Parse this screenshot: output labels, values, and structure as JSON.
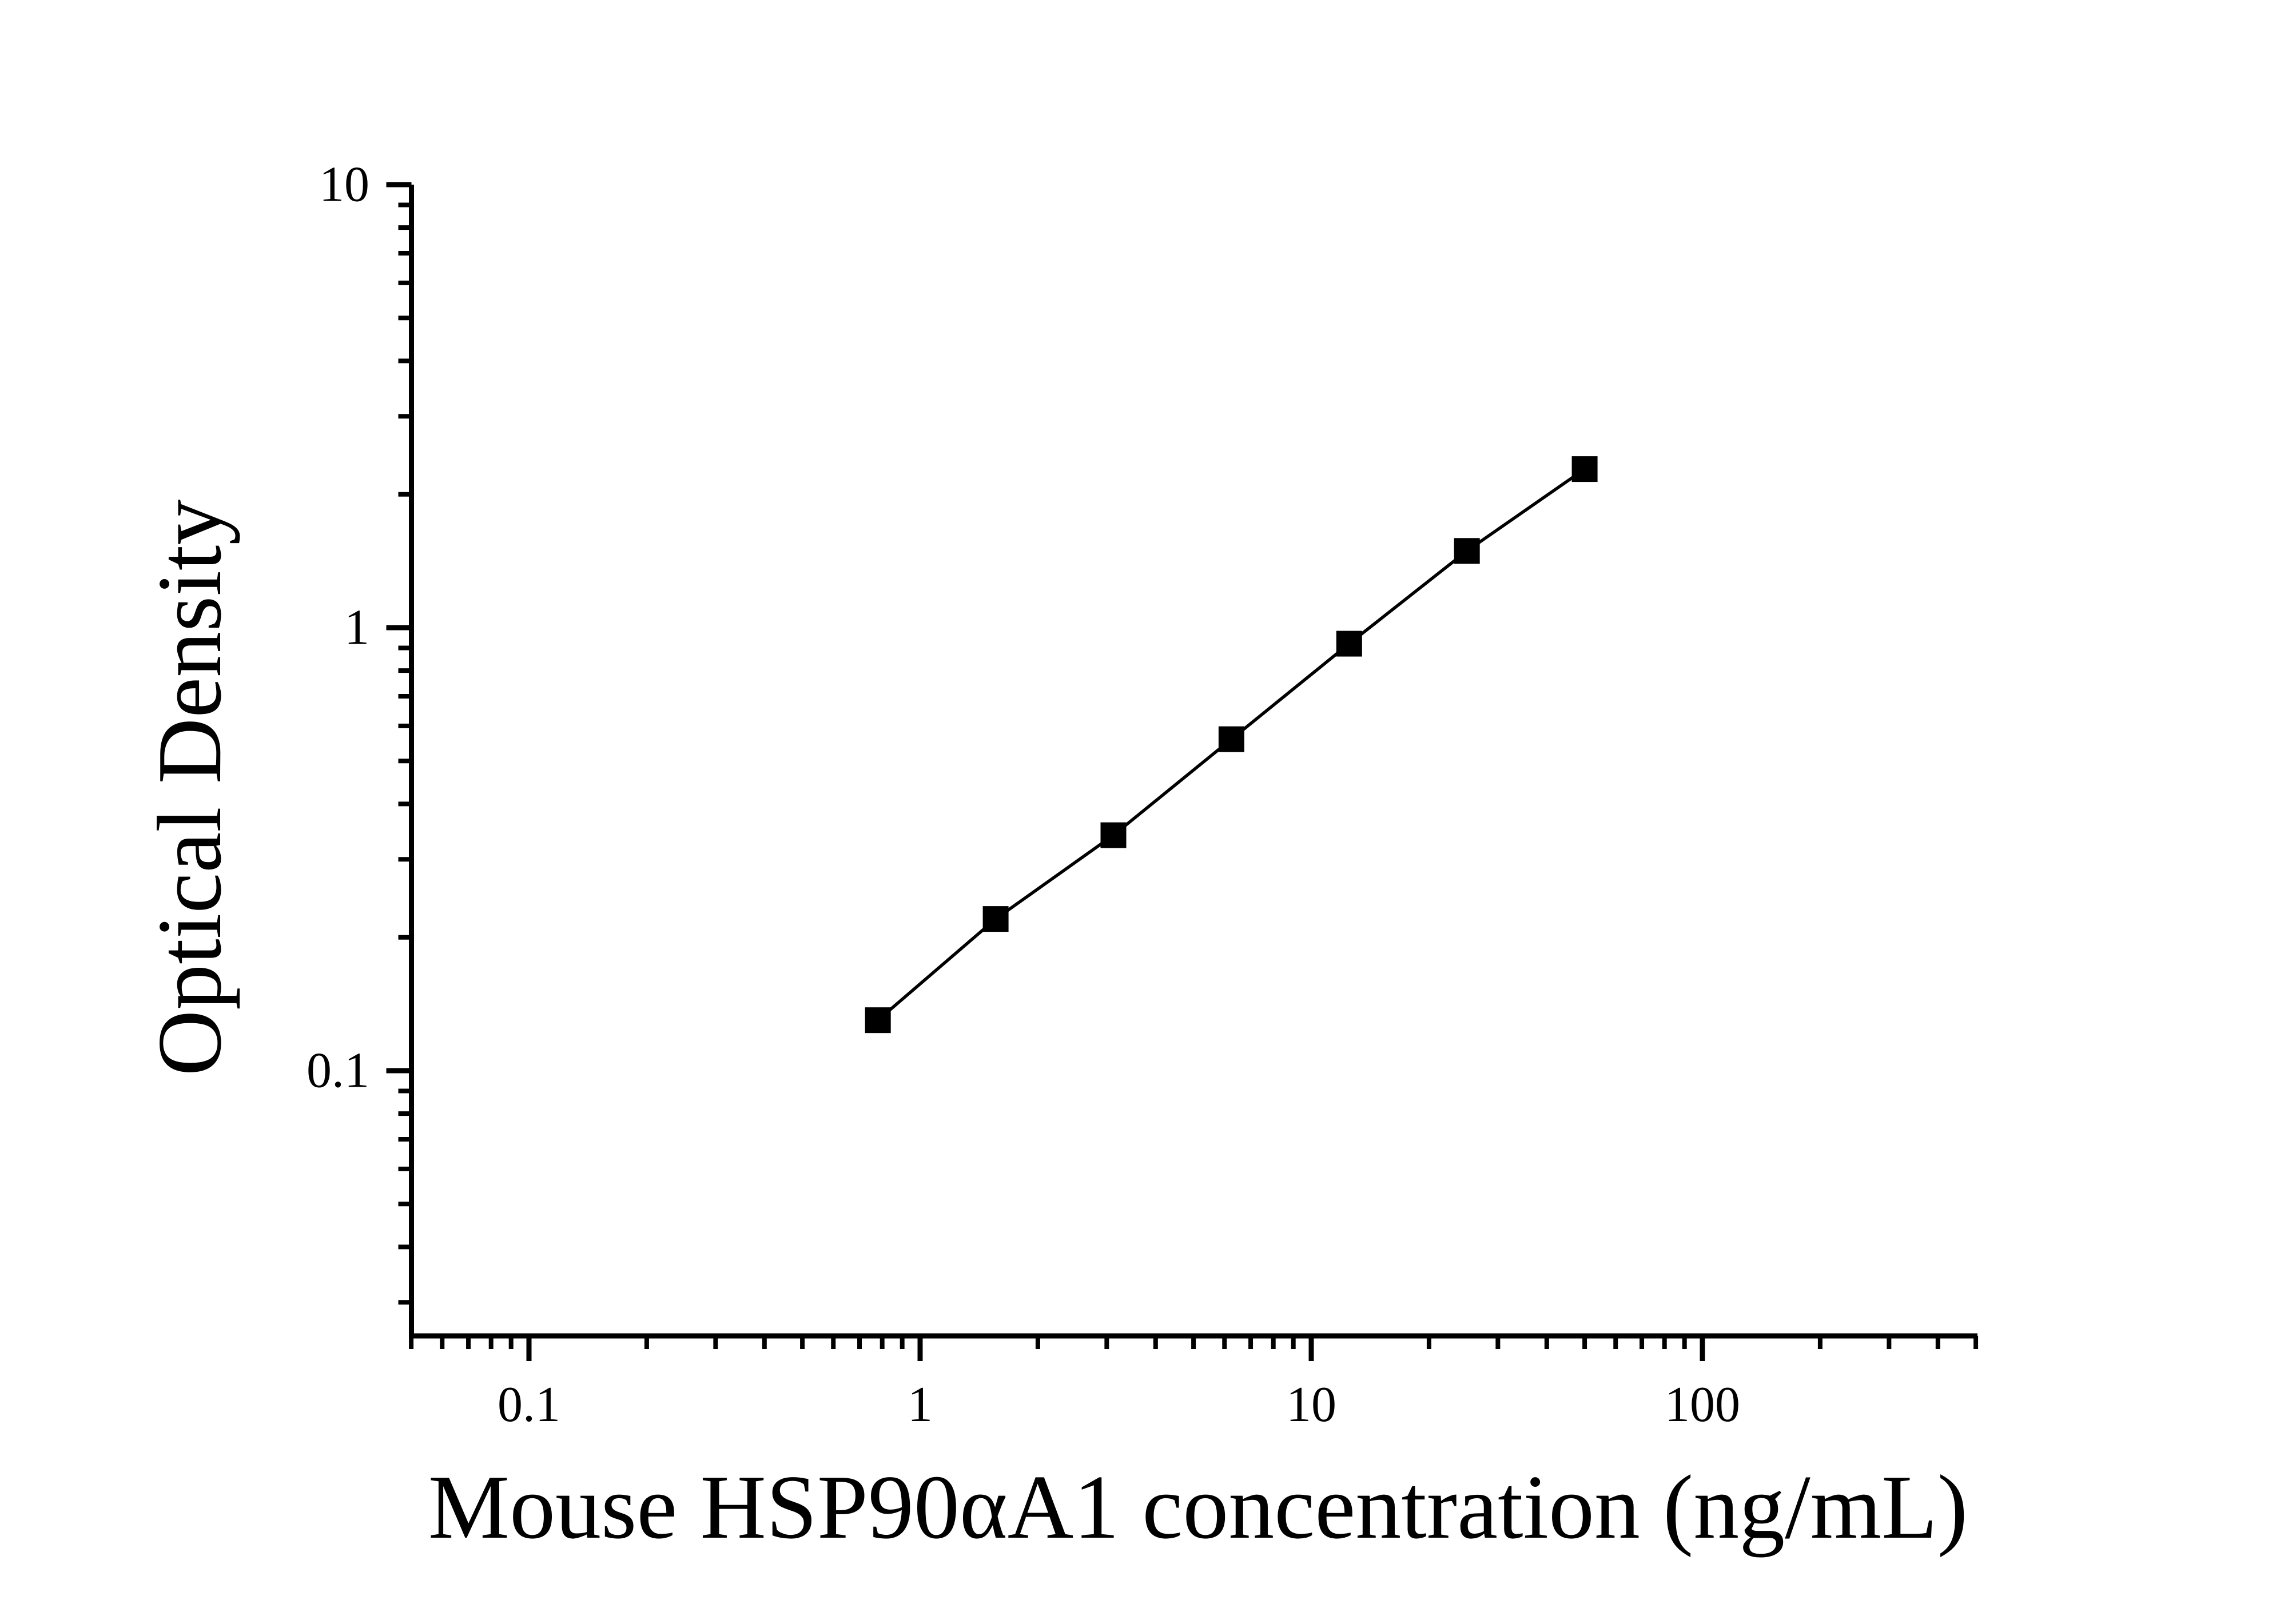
{
  "figure": {
    "background_color": "#ffffff",
    "axis_color": "#000000",
    "x_axis": {
      "title": "Mouse HSP90αA1 concentration (ng/mL)",
      "scale": "log",
      "range": [
        0.05,
        500
      ],
      "ticks": [
        {
          "value": 0.1,
          "label": "0.1"
        },
        {
          "value": 1,
          "label": "1"
        },
        {
          "value": 10,
          "label": "10"
        },
        {
          "value": 100,
          "label": "100"
        }
      ]
    },
    "y_axis": {
      "title": "Optical Density",
      "scale": "log",
      "range": [
        0.025,
        10
      ],
      "ticks": [
        {
          "value": 0.1,
          "label": "0.1"
        },
        {
          "value": 1,
          "label": "1"
        },
        {
          "value": 10,
          "label": "10"
        }
      ]
    }
  },
  "chart_data": {
    "type": "scatter",
    "title": "",
    "xlabel": "Mouse HSP90αA1 concentration (ng/mL)",
    "ylabel": "Optical Density",
    "x_scale": "log",
    "y_scale": "log",
    "xlim": [
      0.05,
      500
    ],
    "ylim": [
      0.025,
      10
    ],
    "grid": false,
    "legend": null,
    "series": [
      {
        "marker": "filled-square",
        "line": "solid",
        "color": "#000000",
        "x": [
          0.78,
          1.56,
          3.12,
          6.25,
          12.5,
          25,
          50
        ],
        "y": [
          0.13,
          0.22,
          0.34,
          0.56,
          0.92,
          1.49,
          2.28
        ]
      }
    ]
  }
}
